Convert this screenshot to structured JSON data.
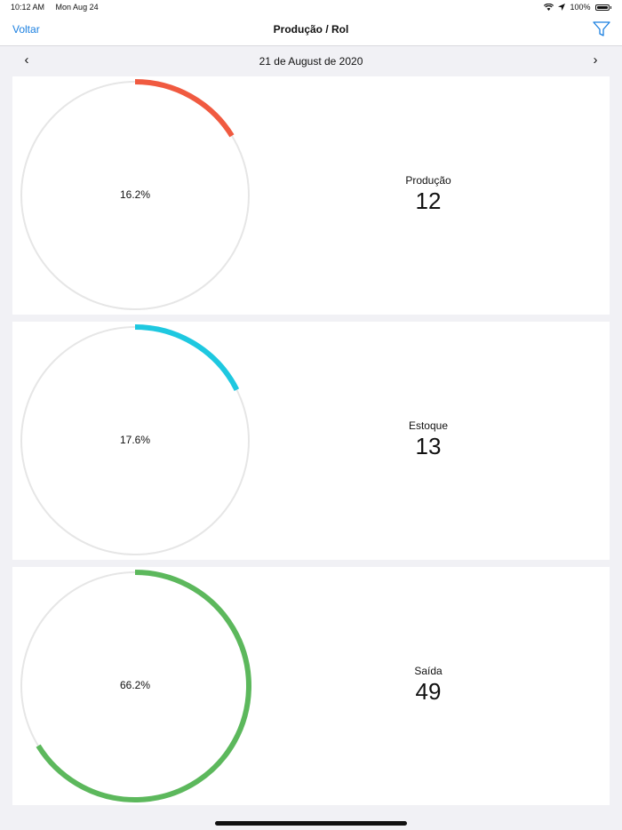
{
  "status_bar": {
    "time": "10:12 AM",
    "date": "Mon Aug 24",
    "battery": "100%"
  },
  "navbar": {
    "back_label": "Voltar",
    "title": "Produção / Rol"
  },
  "date_bar": {
    "label": "21 de August de 2020",
    "prev": "‹",
    "next": "›"
  },
  "chart_data": [
    {
      "type": "donut",
      "label": "Produção",
      "value": "12",
      "percent_label": "16.2%",
      "fraction": 0.162,
      "color": "#f05a40"
    },
    {
      "type": "donut",
      "label": "Estoque",
      "value": "13",
      "percent_label": "17.6%",
      "fraction": 0.176,
      "color": "#1ec8e0"
    },
    {
      "type": "donut",
      "label": "Saída",
      "value": "49",
      "percent_label": "66.2%",
      "fraction": 0.662,
      "color": "#5cb85c"
    }
  ]
}
